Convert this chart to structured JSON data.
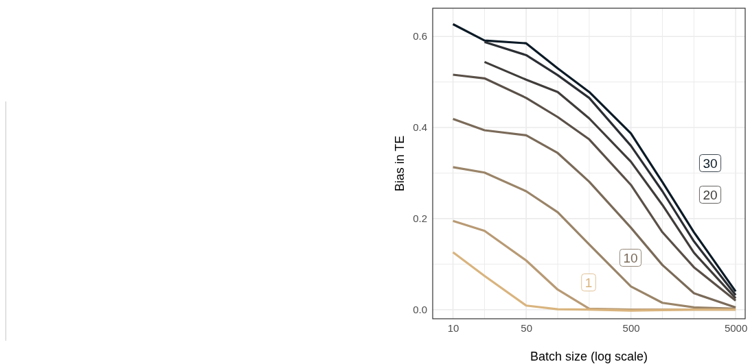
{
  "chart_data": {
    "type": "line",
    "xlabel": "Batch size (log scale)",
    "ylabel": "Bias in TE",
    "log": "x",
    "x": [
      10,
      20,
      50,
      100,
      200,
      500,
      1000,
      2000,
      5000
    ],
    "xlim": [
      6.4,
      6170
    ],
    "xticks": [
      10,
      {
        "value": 20,
        "label": null
      },
      50,
      {
        "value": 100,
        "label": null
      },
      {
        "value": 200,
        "label": null
      },
      500,
      {
        "value": 1000,
        "label": null
      },
      {
        "value": 2000,
        "label": null
      },
      5000
    ],
    "ylim": [
      -0.02,
      0.662
    ],
    "yticks": [
      {
        "value": 0,
        "label": "0.0"
      },
      {
        "value": 0.1,
        "label": null
      },
      {
        "value": 0.2,
        "label": "0.2"
      },
      {
        "value": 0.3,
        "label": null
      },
      {
        "value": 0.4,
        "label": "0.4"
      },
      {
        "value": 0.5,
        "label": null
      },
      {
        "value": 0.6,
        "label": "0.6"
      }
    ],
    "grid": true,
    "legend": "right",
    "line_style": "solid",
    "marker": "none",
    "series": [
      {
        "name": "30",
        "color": "#0b1a26",
        "values": [
          0.627,
          0.591,
          0.585,
          0.53,
          0.478,
          0.387,
          0.28,
          0.17,
          0.04
        ]
      },
      {
        "color": "#2b2e33",
        "values": [
          null,
          0.588,
          0.559,
          0.515,
          0.465,
          0.36,
          0.26,
          0.15,
          0.032
        ]
      },
      {
        "name": "20",
        "color": "#3f3c3a",
        "values": [
          null,
          0.544,
          0.505,
          0.478,
          0.42,
          0.325,
          0.23,
          0.125,
          0.025
        ]
      },
      {
        "color": "#5a5048",
        "values": [
          0.516,
          0.508,
          0.465,
          0.423,
          0.374,
          0.274,
          0.17,
          0.093,
          0.02
        ]
      },
      {
        "name": "10",
        "color": "#7a6a58",
        "values": [
          0.419,
          0.394,
          0.383,
          0.344,
          0.281,
          0.18,
          0.098,
          0.036,
          0.005
        ]
      },
      {
        "color": "#9a8468",
        "values": [
          0.313,
          0.301,
          0.26,
          0.214,
          0.143,
          0.051,
          0.015,
          0.005,
          0.002
        ]
      },
      {
        "color": "#b89a74",
        "values": [
          0.195,
          0.173,
          0.108,
          0.044,
          0.002,
          0,
          0,
          0,
          0
        ]
      },
      {
        "name": "1",
        "color": "#d9b47e",
        "values": [
          0.126,
          0.074,
          0.009,
          0.001,
          0,
          -0.002,
          -0.001,
          0,
          0
        ]
      }
    ]
  }
}
